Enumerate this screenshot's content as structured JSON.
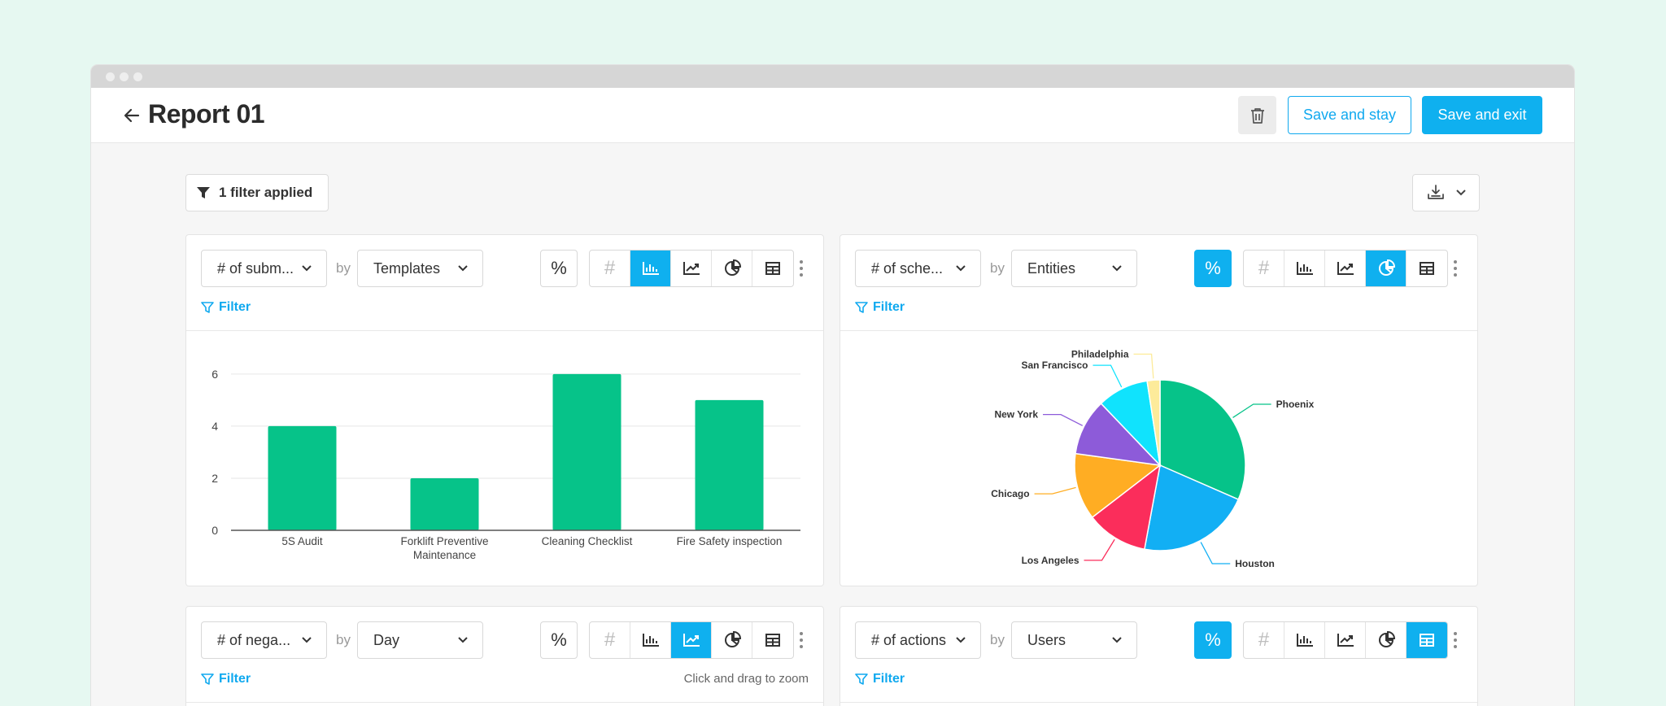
{
  "header": {
    "title": "Report 01",
    "save_stay": "Save and stay",
    "save_exit": "Save and exit"
  },
  "toolbar": {
    "filter_applied": "1 filter applied"
  },
  "cards": [
    {
      "metric": "# of subm...",
      "by": "by",
      "group": "Templates",
      "filter": "Filter",
      "percent_active": false,
      "active_view": "bar"
    },
    {
      "metric": "# of sche...",
      "by": "by",
      "group": "Entities",
      "filter": "Filter",
      "percent_active": true,
      "active_view": "pie"
    },
    {
      "metric": "# of nega...",
      "by": "by",
      "group": "Day",
      "filter": "Filter",
      "percent_active": false,
      "active_view": "line",
      "hint": "Click and drag to zoom"
    },
    {
      "metric": "# of actions",
      "by": "by",
      "group": "Users",
      "filter": "Filter",
      "percent_active": true,
      "active_view": "table"
    }
  ],
  "chart_data": [
    {
      "type": "bar",
      "categories": [
        "5S Audit",
        "Forklift Preventive Maintenance",
        "Cleaning Checklist",
        "Fire Safety inspection"
      ],
      "category_lines": [
        [
          "5S Audit"
        ],
        [
          "Forklift Preventive",
          "Maintenance"
        ],
        [
          "Cleaning Checklist"
        ],
        [
          "Fire Safety inspection"
        ]
      ],
      "values": [
        4,
        2,
        6,
        5
      ],
      "yticks": [
        0,
        2,
        4,
        6
      ],
      "ylim": [
        0,
        6.4
      ],
      "color": "#06c389",
      "grid": true
    },
    {
      "type": "pie",
      "labels": [
        "Phoenix",
        "Houston",
        "Los Angeles",
        "Chicago",
        "New York",
        "San Francisco",
        "Philadelphia"
      ],
      "values": [
        32.5,
        22,
        12,
        13,
        11,
        10,
        2.5
      ],
      "colors": [
        "#06c389",
        "#12aff4",
        "#fb2d5b",
        "#ffad23",
        "#8d5bd9",
        "#10e3fd",
        "#fdeb9a"
      ]
    }
  ],
  "colors": {
    "accent": "#0fb0ef",
    "bar": "#06c389"
  }
}
